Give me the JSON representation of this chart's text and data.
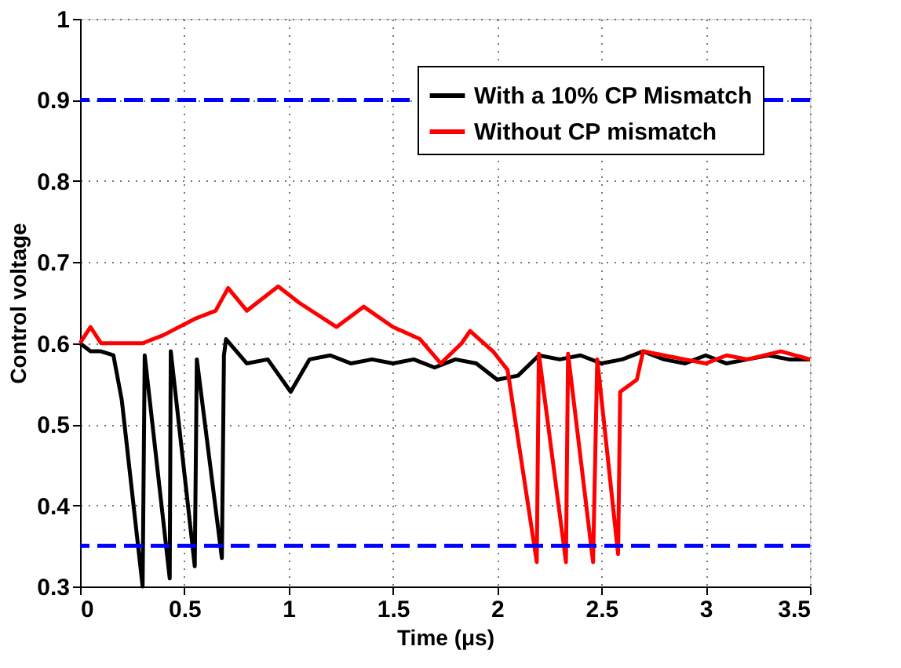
{
  "chart_data": {
    "type": "line",
    "xlabel": "Time (μs)",
    "ylabel": "Control voltage",
    "xlim": [
      0,
      3.5
    ],
    "xticks": [
      0,
      0.5,
      1,
      1.5,
      2,
      2.5,
      3,
      3.5
    ],
    "ylim": [
      0.3,
      1
    ],
    "yticks": [
      0.3,
      0.4,
      0.5,
      0.6,
      0.7,
      0.8,
      0.9,
      1
    ],
    "grid": true,
    "legend": "top right",
    "line_style": "solid",
    "marker": "none",
    "series": [
      {
        "name": "With a 10% CP Mismatch",
        "color": "#000000",
        "x": [
          0,
          0.05,
          0.1,
          0.16,
          0.2,
          0.3,
          0.31,
          0.43,
          0.435,
          0.55,
          0.56,
          0.68,
          0.69,
          0.7,
          0.8,
          0.9,
          1.01,
          1.1,
          1.2,
          1.3,
          1.4,
          1.5,
          1.6,
          1.7,
          1.8,
          1.9,
          2.0,
          2.1,
          2.2,
          2.3,
          2.4,
          2.5,
          2.6,
          2.7,
          2.8,
          2.9,
          3.0,
          3.1,
          3.2,
          3.3,
          3.4,
          3.5
        ],
        "values": [
          0.6,
          0.59,
          0.59,
          0.585,
          0.53,
          0.3,
          0.585,
          0.31,
          0.59,
          0.325,
          0.58,
          0.335,
          0.585,
          0.605,
          0.575,
          0.58,
          0.54,
          0.58,
          0.585,
          0.575,
          0.58,
          0.575,
          0.58,
          0.57,
          0.58,
          0.575,
          0.555,
          0.56,
          0.585,
          0.58,
          0.585,
          0.575,
          0.58,
          0.59,
          0.58,
          0.575,
          0.585,
          0.575,
          0.58,
          0.585,
          0.58,
          0.58
        ]
      },
      {
        "name": "Without CP mismatch",
        "color": "#ff0000",
        "x": [
          0,
          0.05,
          0.1,
          0.2,
          0.3,
          0.4,
          0.55,
          0.65,
          0.71,
          0.8,
          0.95,
          1.05,
          1.23,
          1.36,
          1.5,
          1.63,
          1.73,
          1.83,
          1.87,
          1.98,
          2.05,
          2.19,
          2.2,
          2.33,
          2.34,
          2.46,
          2.48,
          2.58,
          2.59,
          2.67,
          2.7,
          2.8,
          2.9,
          3.0,
          3.1,
          3.2,
          3.36,
          3.5
        ],
        "values": [
          0.6,
          0.62,
          0.6,
          0.6,
          0.6,
          0.61,
          0.63,
          0.64,
          0.668,
          0.64,
          0.67,
          0.65,
          0.62,
          0.645,
          0.62,
          0.605,
          0.575,
          0.6,
          0.615,
          0.59,
          0.567,
          0.33,
          0.587,
          0.33,
          0.587,
          0.33,
          0.58,
          0.34,
          0.54,
          0.555,
          0.59,
          0.585,
          0.58,
          0.575,
          0.585,
          0.58,
          0.59,
          0.58
        ]
      }
    ],
    "ref_lines": [
      {
        "axis": "y",
        "value": 0.9,
        "color": "#0000ff",
        "line_style": "dashed"
      },
      {
        "axis": "y",
        "value": 0.35,
        "color": "#0000ff",
        "line_style": "dashed"
      }
    ]
  }
}
